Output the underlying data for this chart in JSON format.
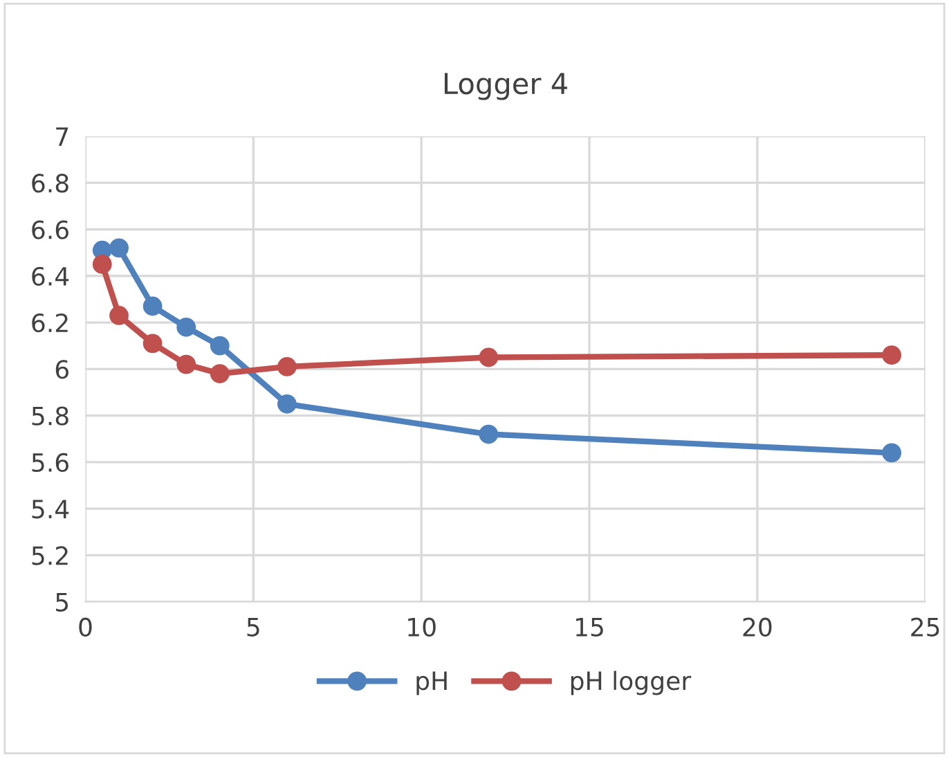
{
  "chart_data": {
    "type": "line",
    "title": "Logger 4",
    "x": [
      0.5,
      1,
      2,
      3,
      4,
      6,
      12,
      24
    ],
    "series": [
      {
        "name": "pH",
        "color": "#4f81bd",
        "values": [
          6.51,
          6.52,
          6.27,
          6.18,
          6.1,
          5.85,
          5.72,
          5.64
        ]
      },
      {
        "name": "pH logger",
        "color": "#c0504d",
        "values": [
          6.45,
          6.23,
          6.11,
          6.02,
          5.98,
          6.01,
          6.05,
          6.06
        ]
      }
    ],
    "xlim": [
      0,
      25
    ],
    "xticks": [
      0,
      5,
      10,
      15,
      20,
      25
    ],
    "ylim": [
      5,
      7
    ],
    "yticks": [
      5,
      5.2,
      5.4,
      5.6,
      5.8,
      6,
      6.2,
      6.4,
      6.6,
      6.8,
      7
    ],
    "grid": true,
    "legend": "bottom",
    "marker": "circle",
    "line_style": "solid"
  }
}
